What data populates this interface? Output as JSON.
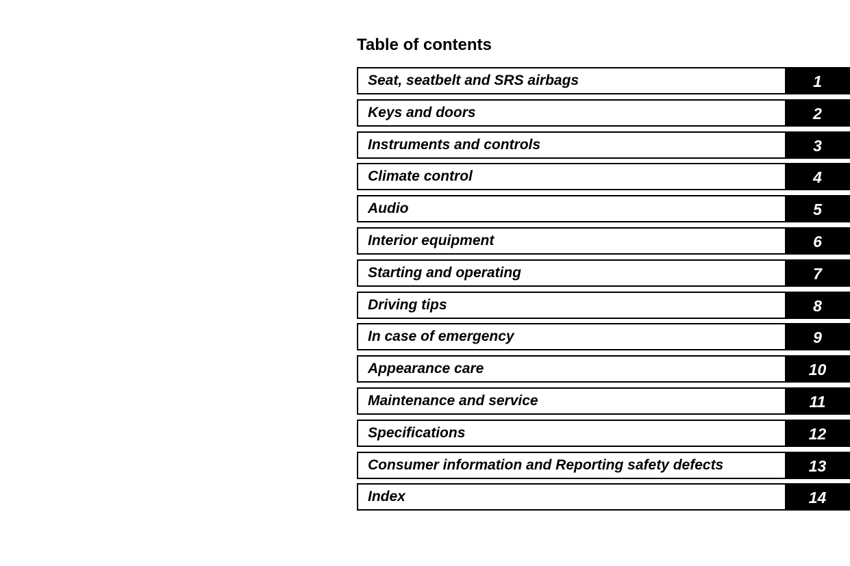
{
  "title": "Table of contents",
  "colors": {
    "tab_background": "#000000",
    "tab_text": "#ffffff",
    "border": "#000000"
  },
  "entries": [
    {
      "label": "Seat, seatbelt and SRS airbags",
      "number": "1"
    },
    {
      "label": "Keys and doors",
      "number": "2"
    },
    {
      "label": "Instruments and controls",
      "number": "3"
    },
    {
      "label": "Climate control",
      "number": "4"
    },
    {
      "label": "Audio",
      "number": "5"
    },
    {
      "label": "Interior equipment",
      "number": "6"
    },
    {
      "label": "Starting and operating",
      "number": "7"
    },
    {
      "label": "Driving tips",
      "number": "8"
    },
    {
      "label": "In case of emergency",
      "number": "9"
    },
    {
      "label": "Appearance care",
      "number": "10"
    },
    {
      "label": "Maintenance and service",
      "number": "11"
    },
    {
      "label": "Specifications",
      "number": "12"
    },
    {
      "label": "Consumer information and Reporting safety defects",
      "number": "13"
    },
    {
      "label": "Index",
      "number": "14"
    }
  ]
}
